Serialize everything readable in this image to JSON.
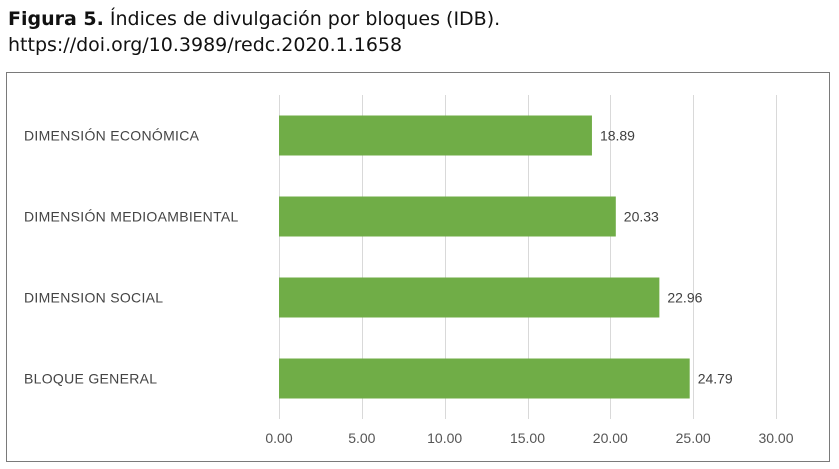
{
  "caption": {
    "label": "Figura 5.",
    "title": " Índices de divulgación por bloques (IDB).",
    "doi": "https://doi.org/10.3989/redc.2020.1.1658"
  },
  "chart_data": {
    "type": "bar",
    "orientation": "horizontal",
    "categories": [
      "DIMENSIÓN ECONÓMICA",
      "DIMENSIÓN MEDIOAMBIENTAL",
      "DIMENSION SOCIAL",
      "BLOQUE GENERAL"
    ],
    "values": [
      18.89,
      20.33,
      22.96,
      24.79
    ],
    "value_labels": [
      "18.89",
      "20.33",
      "22.96",
      "24.79"
    ],
    "xlim": [
      0,
      30
    ],
    "ticks": [
      "0.00",
      "5.00",
      "10.00",
      "15.00",
      "20.00",
      "25.00",
      "30.00"
    ],
    "tick_values": [
      0,
      5,
      10,
      15,
      20,
      25,
      30
    ],
    "grid": true,
    "bar_color": "#70ad47",
    "title": "",
    "xlabel": "",
    "ylabel": ""
  }
}
